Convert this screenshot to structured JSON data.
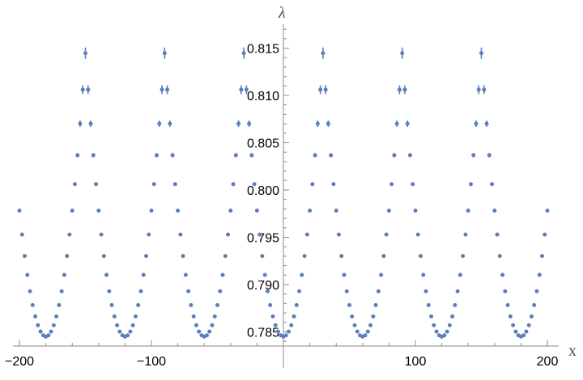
{
  "chart_data": {
    "type": "scatter",
    "xlabel": "x",
    "ylabel": "λ",
    "xlim": [
      -200,
      200
    ],
    "ylim": [
      0.7835,
      0.8165
    ],
    "x_axis_at_y": 0.7835,
    "y_axis_at_x": 0,
    "x_ticks": [
      -200,
      -100,
      100,
      200
    ],
    "x_tick_labels": [
      "−200",
      "−100",
      "100",
      "200"
    ],
    "y_ticks": [
      0.785,
      0.79,
      0.795,
      0.8,
      0.805,
      0.81,
      0.815
    ],
    "y_tick_labels": [
      "0.785",
      "0.790",
      "0.795",
      "0.800",
      "0.805",
      "0.810",
      "0.815"
    ],
    "grid": false,
    "legend": "none",
    "color": "#5b7fbc",
    "series": [
      {
        "pattern": "periodic parabolic arcs with cusps",
        "period": 60,
        "x_step": 2,
        "x_range": [
          -200,
          200
        ],
        "minimum": {
          "y": 0.7845,
          "at_x": [
            -180,
            -120,
            -60,
            0,
            60,
            120,
            180
          ]
        },
        "cusp": {
          "y": 0.8145,
          "at_x": [
            -150,
            -90,
            -30,
            30,
            90,
            150
          ]
        },
        "arc_coefficient": 3.33e-05,
        "error_bar_max": 0.0006,
        "error_bar_from_y": 0.797
      }
    ]
  }
}
